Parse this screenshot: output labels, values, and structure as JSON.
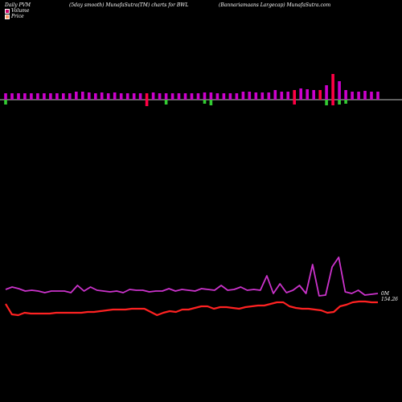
{
  "header": {
    "left": "Daily PVM",
    "mid": "(5day smooth) MunafaSutra(TM) charts for BWL",
    "right": "(Bannariamaans Largecap) MunafaSutra.com"
  },
  "legend": [
    {
      "label": "Volume",
      "color": "#cc0066"
    },
    {
      "label": "Price",
      "color": "#ff9966"
    }
  ],
  "chart_data": {
    "type": "line",
    "volume_bars": {
      "up_color": "#cc00cc",
      "down_color": "#ff0044",
      "neg_color": "#33cc33",
      "values": [
        8,
        8,
        8,
        8,
        8,
        8,
        8,
        8,
        8,
        8,
        8,
        10,
        10,
        9,
        8,
        9,
        8,
        9,
        8,
        8,
        8,
        8,
        8,
        9,
        8,
        8,
        8,
        8,
        8,
        8,
        8,
        9,
        9,
        8,
        8,
        8,
        8,
        10,
        10,
        9,
        9,
        9,
        12,
        10,
        10,
        12,
        14,
        13,
        12,
        12,
        18,
        32,
        23,
        12,
        10,
        10,
        11,
        10,
        10
      ],
      "neg_values": [
        6,
        0,
        0,
        0,
        0,
        0,
        0,
        0,
        0,
        0,
        0,
        0,
        0,
        0,
        0,
        0,
        0,
        0,
        0,
        0,
        0,
        0,
        8,
        0,
        0,
        6,
        0,
        0,
        0,
        0,
        0,
        5,
        7,
        0,
        0,
        0,
        0,
        0,
        0,
        0,
        0,
        0,
        0,
        0,
        0,
        6,
        0,
        0,
        0,
        0,
        7,
        7,
        6,
        5,
        0,
        0,
        0,
        0,
        0
      ],
      "red_idx": [
        22,
        45,
        49,
        51
      ]
    },
    "series": [
      {
        "name": "Volume",
        "color": "#cc33cc",
        "values": [
          360,
          357,
          359,
          362,
          361,
          362,
          364,
          362,
          362,
          362,
          364,
          355,
          362,
          357,
          361,
          362,
          363,
          362,
          364,
          360,
          361,
          361,
          363,
          362,
          362,
          359,
          362,
          360,
          361,
          362,
          359,
          360,
          361,
          355,
          361,
          360,
          357,
          361,
          360,
          361,
          343,
          365,
          353,
          364,
          361,
          355,
          365,
          329,
          368,
          367,
          332,
          320,
          363,
          365,
          361,
          367,
          366,
          365
        ]
      },
      {
        "name": "Price",
        "color": "#ff2222",
        "values": [
          378,
          391,
          392,
          389,
          390,
          390,
          390,
          390,
          389,
          389,
          389,
          389,
          389,
          388,
          388,
          387,
          386,
          385,
          385,
          385,
          384,
          384,
          384,
          388,
          392,
          389,
          387,
          388,
          385,
          385,
          383,
          381,
          381,
          384,
          382,
          382,
          383,
          384,
          382,
          381,
          380,
          380,
          378,
          376,
          376,
          381,
          383,
          384,
          384,
          385,
          386,
          389,
          388,
          381,
          379,
          376,
          375,
          375,
          376,
          376
        ]
      }
    ],
    "end_labels": {
      "volume": "0M",
      "price": "154.26"
    }
  }
}
